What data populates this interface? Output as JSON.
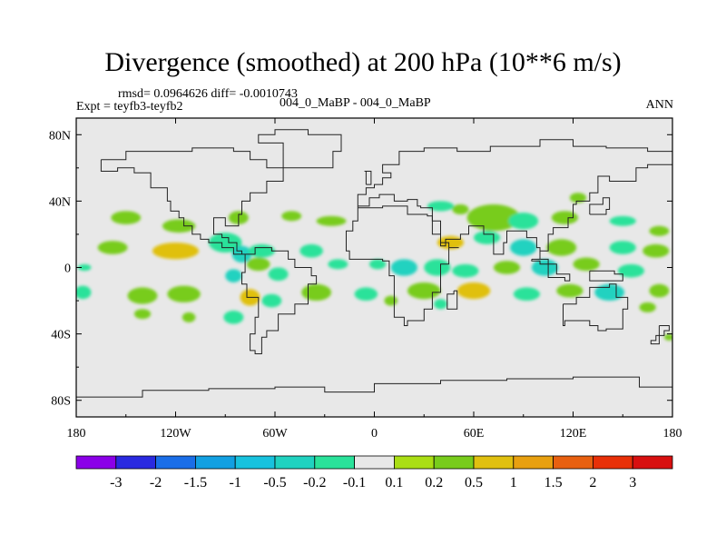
{
  "chart_data": {
    "type": "heatmap",
    "title": "Divergence (smoothed) at 200 hPa (10**6 m/s)",
    "stats_label": "rmsd= 0.0964626 diff= -0.0010743",
    "expt_label": "Expt = teyfb3-teyfb2",
    "case_label": "004_0_MaBP - 004_0_MaBP",
    "period_label": "ANN",
    "x_axis": {
      "range": [
        -180,
        180
      ],
      "ticks": [
        {
          "value": -180,
          "label": "180"
        },
        {
          "value": -120,
          "label": "120W"
        },
        {
          "value": -60,
          "label": "60W"
        },
        {
          "value": 0,
          "label": "0"
        },
        {
          "value": 60,
          "label": "60E"
        },
        {
          "value": 120,
          "label": "120E"
        },
        {
          "value": 180,
          "label": "180"
        }
      ]
    },
    "y_axis": {
      "range": [
        -90,
        90
      ],
      "ticks": [
        {
          "value": 80,
          "label": "80N"
        },
        {
          "value": 40,
          "label": "40N"
        },
        {
          "value": 0,
          "label": "0"
        },
        {
          "value": -40,
          "label": "40S"
        },
        {
          "value": -80,
          "label": "80S"
        }
      ]
    },
    "colorbar": {
      "labels": [
        "-3",
        "-2",
        "-1.5",
        "-1",
        "-0.5",
        "-0.2",
        "-0.1",
        "0.1",
        "0.2",
        "0.5",
        "1",
        "1.5",
        "2",
        "3"
      ],
      "colors": [
        "#8b00e8",
        "#2a2ae0",
        "#1a6ee8",
        "#12a0e2",
        "#18c2de",
        "#20d2c0",
        "#2ae29a",
        "#e8e8e8",
        "#aade14",
        "#78cc1c",
        "#e0c010",
        "#e8a010",
        "#e86010",
        "#e83008",
        "#d81010"
      ]
    },
    "fields": [
      {
        "lon": -150,
        "lat": 30,
        "rx": 9,
        "ry": 4,
        "value": 0.2
      },
      {
        "lon": -118,
        "lat": 25,
        "rx": 10,
        "ry": 4,
        "value": 0.2
      },
      {
        "lon": -82,
        "lat": 30,
        "rx": 6,
        "ry": 4,
        "value": 0.2
      },
      {
        "lon": -50,
        "lat": 31,
        "rx": 6,
        "ry": 3,
        "value": 0.2
      },
      {
        "lon": -26,
        "lat": 28,
        "rx": 9,
        "ry": 3,
        "value": 0.2
      },
      {
        "lon": -158,
        "lat": 12,
        "rx": 9,
        "ry": 4,
        "value": 0.2
      },
      {
        "lon": -120,
        "lat": 10,
        "rx": 14,
        "ry": 5,
        "value": 0.5
      },
      {
        "lon": -90,
        "lat": 15,
        "rx": 10,
        "ry": 6,
        "value": -0.2
      },
      {
        "lon": -80,
        "lat": 8,
        "rx": 6,
        "ry": 5,
        "value": -0.5
      },
      {
        "lon": -68,
        "lat": 10,
        "rx": 8,
        "ry": 4,
        "value": -0.2
      },
      {
        "lon": -38,
        "lat": 10,
        "rx": 7,
        "ry": 4,
        "value": -0.2
      },
      {
        "lon": -175,
        "lat": 0,
        "rx": 4,
        "ry": 2,
        "value": -0.2
      },
      {
        "lon": -85,
        "lat": -5,
        "rx": 5,
        "ry": 4,
        "value": -0.5
      },
      {
        "lon": -70,
        "lat": 2,
        "rx": 7,
        "ry": 4,
        "value": 0.2
      },
      {
        "lon": -58,
        "lat": -4,
        "rx": 6,
        "ry": 4,
        "value": -0.2
      },
      {
        "lon": -22,
        "lat": 2,
        "rx": 6,
        "ry": 3,
        "value": -0.2
      },
      {
        "lon": 2,
        "lat": 2,
        "rx": 5,
        "ry": 3,
        "value": -0.2
      },
      {
        "lon": 18,
        "lat": 0,
        "rx": 8,
        "ry": 5,
        "value": -0.5
      },
      {
        "lon": 38,
        "lat": 0,
        "rx": 8,
        "ry": 5,
        "value": -0.2
      },
      {
        "lon": -176,
        "lat": -15,
        "rx": 5,
        "ry": 4,
        "value": -0.2
      },
      {
        "lon": -140,
        "lat": -17,
        "rx": 9,
        "ry": 5,
        "value": 0.2
      },
      {
        "lon": -115,
        "lat": -16,
        "rx": 10,
        "ry": 5,
        "value": 0.2
      },
      {
        "lon": -75,
        "lat": -18,
        "rx": 6,
        "ry": 5,
        "value": 0.5
      },
      {
        "lon": -62,
        "lat": -20,
        "rx": 6,
        "ry": 4,
        "value": -0.2
      },
      {
        "lon": -35,
        "lat": -15,
        "rx": 9,
        "ry": 5,
        "value": 0.2
      },
      {
        "lon": -5,
        "lat": -16,
        "rx": 7,
        "ry": 4,
        "value": -0.2
      },
      {
        "lon": -140,
        "lat": -28,
        "rx": 5,
        "ry": 3,
        "value": 0.2
      },
      {
        "lon": -85,
        "lat": -30,
        "rx": 6,
        "ry": 4,
        "value": -0.2
      },
      {
        "lon": -112,
        "lat": -30,
        "rx": 4,
        "ry": 3,
        "value": 0.2
      },
      {
        "lon": 10,
        "lat": -20,
        "rx": 4,
        "ry": 3,
        "value": 0.2
      },
      {
        "lon": 40,
        "lat": 37,
        "rx": 8,
        "ry": 3,
        "value": -0.2
      },
      {
        "lon": 52,
        "lat": 35,
        "rx": 5,
        "ry": 3,
        "value": 0.2
      },
      {
        "lon": 72,
        "lat": 30,
        "rx": 16,
        "ry": 8,
        "value": 0.2
      },
      {
        "lon": 90,
        "lat": 28,
        "rx": 9,
        "ry": 5,
        "value": -0.2
      },
      {
        "lon": 115,
        "lat": 30,
        "rx": 8,
        "ry": 4,
        "value": 0.2
      },
      {
        "lon": 123,
        "lat": 42,
        "rx": 5,
        "ry": 3,
        "value": 0.2
      },
      {
        "lon": 150,
        "lat": 28,
        "rx": 8,
        "ry": 3,
        "value": -0.2
      },
      {
        "lon": 172,
        "lat": 22,
        "rx": 6,
        "ry": 3,
        "value": 0.2
      },
      {
        "lon": 46,
        "lat": 15,
        "rx": 8,
        "ry": 4,
        "value": 0.5
      },
      {
        "lon": 68,
        "lat": 18,
        "rx": 8,
        "ry": 4,
        "value": -0.2
      },
      {
        "lon": 90,
        "lat": 12,
        "rx": 8,
        "ry": 5,
        "value": -0.5
      },
      {
        "lon": 113,
        "lat": 12,
        "rx": 9,
        "ry": 5,
        "value": 0.2
      },
      {
        "lon": 150,
        "lat": 12,
        "rx": 8,
        "ry": 4,
        "value": -0.2
      },
      {
        "lon": 170,
        "lat": 10,
        "rx": 8,
        "ry": 4,
        "value": 0.2
      },
      {
        "lon": 55,
        "lat": -2,
        "rx": 8,
        "ry": 4,
        "value": -0.2
      },
      {
        "lon": 80,
        "lat": 0,
        "rx": 8,
        "ry": 4,
        "value": 0.2
      },
      {
        "lon": 103,
        "lat": 0,
        "rx": 8,
        "ry": 5,
        "value": -0.5
      },
      {
        "lon": 128,
        "lat": 2,
        "rx": 8,
        "ry": 4,
        "value": 0.2
      },
      {
        "lon": 155,
        "lat": -2,
        "rx": 8,
        "ry": 4,
        "value": -0.2
      },
      {
        "lon": 30,
        "lat": -14,
        "rx": 10,
        "ry": 5,
        "value": 0.2
      },
      {
        "lon": 60,
        "lat": -14,
        "rx": 10,
        "ry": 5,
        "value": 0.5
      },
      {
        "lon": 92,
        "lat": -16,
        "rx": 8,
        "ry": 4,
        "value": -0.2
      },
      {
        "lon": 118,
        "lat": -14,
        "rx": 8,
        "ry": 4,
        "value": 0.2
      },
      {
        "lon": 142,
        "lat": -15,
        "rx": 9,
        "ry": 5,
        "value": -0.5
      },
      {
        "lon": 172,
        "lat": -14,
        "rx": 6,
        "ry": 4,
        "value": 0.2
      },
      {
        "lon": 40,
        "lat": -22,
        "rx": 4,
        "ry": 3,
        "value": -0.2
      },
      {
        "lon": 165,
        "lat": -24,
        "rx": 5,
        "ry": 3,
        "value": 0.2
      },
      {
        "lon": 178,
        "lat": -42,
        "rx": 3,
        "ry": 2,
        "value": 0.2
      }
    ],
    "land_outlines": [
      [
        [
          -165,
          65
        ],
        [
          -150,
          70
        ],
        [
          -130,
          70
        ],
        [
          -110,
          72
        ],
        [
          -95,
          72
        ],
        [
          -85,
          70
        ],
        [
          -75,
          65
        ],
        [
          -65,
          60
        ],
        [
          -55,
          52
        ],
        [
          -65,
          45
        ],
        [
          -75,
          40
        ],
        [
          -80,
          32
        ],
        [
          -82,
          25
        ],
        [
          -90,
          30
        ],
        [
          -97,
          27
        ],
        [
          -97,
          20
        ],
        [
          -92,
          18
        ],
        [
          -88,
          15
        ],
        [
          -83,
          10
        ],
        [
          -80,
          8
        ],
        [
          -78,
          8
        ],
        [
          -85,
          12
        ],
        [
          -92,
          15
        ],
        [
          -100,
          17
        ],
        [
          -105,
          20
        ],
        [
          -110,
          25
        ],
        [
          -115,
          30
        ],
        [
          -118,
          34
        ],
        [
          -123,
          40
        ],
        [
          -125,
          48
        ],
        [
          -135,
          57
        ],
        [
          -145,
          60
        ],
        [
          -155,
          58
        ],
        [
          -165,
          60
        ],
        [
          -165,
          65
        ]
      ],
      [
        [
          -78,
          8
        ],
        [
          -72,
          12
        ],
        [
          -62,
          10
        ],
        [
          -52,
          5
        ],
        [
          -48,
          0
        ],
        [
          -38,
          -5
        ],
        [
          -35,
          -10
        ],
        [
          -40,
          -22
        ],
        [
          -48,
          -28
        ],
        [
          -58,
          -38
        ],
        [
          -65,
          -42
        ],
        [
          -68,
          -52
        ],
        [
          -72,
          -50
        ],
        [
          -75,
          -40
        ],
        [
          -72,
          -30
        ],
        [
          -70,
          -18
        ],
        [
          -77,
          -10
        ],
        [
          -80,
          -3
        ],
        [
          -78,
          2
        ],
        [
          -78,
          8
        ]
      ],
      [
        [
          -55,
          60
        ],
        [
          -45,
          60
        ],
        [
          -25,
          70
        ],
        [
          -20,
          80
        ],
        [
          -40,
          83
        ],
        [
          -60,
          80
        ],
        [
          -70,
          75
        ],
        [
          -55,
          60
        ]
      ],
      [
        [
          -10,
          36
        ],
        [
          -5,
          36
        ],
        [
          5,
          37
        ],
        [
          10,
          37
        ],
        [
          20,
          32
        ],
        [
          32,
          31
        ],
        [
          35,
          28
        ],
        [
          40,
          15
        ],
        [
          45,
          12
        ],
        [
          51,
          12
        ],
        [
          45,
          2
        ],
        [
          40,
          -5
        ],
        [
          40,
          -15
        ],
        [
          35,
          -25
        ],
        [
          30,
          -32
        ],
        [
          20,
          -35
        ],
        [
          18,
          -30
        ],
        [
          12,
          -18
        ],
        [
          12,
          -5
        ],
        [
          9,
          4
        ],
        [
          5,
          5
        ],
        [
          -5,
          5
        ],
        [
          -15,
          10
        ],
        [
          -17,
          15
        ],
        [
          -17,
          22
        ],
        [
          -13,
          28
        ],
        [
          -10,
          36
        ]
      ],
      [
        [
          -10,
          36
        ],
        [
          -10,
          44
        ],
        [
          -5,
          48
        ],
        [
          0,
          50
        ],
        [
          5,
          54
        ],
        [
          10,
          57
        ],
        [
          5,
          62
        ],
        [
          15,
          70
        ],
        [
          30,
          72
        ],
        [
          50,
          70
        ],
        [
          70,
          73
        ],
        [
          100,
          77
        ],
        [
          120,
          73
        ],
        [
          140,
          72
        ],
        [
          165,
          70
        ],
        [
          180,
          67
        ],
        [
          180,
          62
        ],
        [
          165,
          60
        ],
        [
          158,
          52
        ],
        [
          142,
          55
        ],
        [
          135,
          45
        ],
        [
          130,
          40
        ],
        [
          122,
          38
        ],
        [
          120,
          30
        ],
        [
          117,
          24
        ],
        [
          108,
          20
        ],
        [
          105,
          10
        ],
        [
          100,
          5
        ],
        [
          100,
          12
        ],
        [
          98,
          18
        ],
        [
          92,
          22
        ],
        [
          88,
          22
        ],
        [
          80,
          15
        ],
        [
          78,
          8
        ],
        [
          72,
          20
        ],
        [
          66,
          25
        ],
        [
          57,
          25
        ],
        [
          57,
          20
        ],
        [
          52,
          17
        ],
        [
          43,
          13
        ],
        [
          40,
          20
        ],
        [
          35,
          28
        ],
        [
          35,
          36
        ],
        [
          28,
          37
        ],
        [
          26,
          41
        ],
        [
          20,
          40
        ],
        [
          15,
          40
        ],
        [
          12,
          44
        ],
        [
          8,
          44
        ],
        [
          3,
          42
        ],
        [
          -3,
          37
        ],
        [
          -10,
          36
        ]
      ],
      [
        [
          114,
          -22
        ],
        [
          122,
          -18
        ],
        [
          130,
          -12
        ],
        [
          137,
          -12
        ],
        [
          142,
          -10
        ],
        [
          146,
          -18
        ],
        [
          153,
          -25
        ],
        [
          150,
          -37
        ],
        [
          140,
          -38
        ],
        [
          135,
          -35
        ],
        [
          130,
          -32
        ],
        [
          115,
          -35
        ],
        [
          114,
          -22
        ]
      ],
      [
        [
          95,
          5
        ],
        [
          105,
          -6
        ],
        [
          115,
          -8
        ],
        [
          118,
          -4
        ],
        [
          110,
          2
        ],
        [
          100,
          4
        ],
        [
          95,
          5
        ]
      ],
      [
        [
          130,
          -2
        ],
        [
          145,
          -4
        ],
        [
          150,
          -8
        ],
        [
          140,
          -8
        ],
        [
          130,
          -2
        ]
      ],
      [
        [
          -5,
          50
        ],
        [
          -2,
          58
        ],
        [
          -6,
          58
        ],
        [
          -5,
          50
        ]
      ],
      [
        [
          48,
          -14
        ],
        [
          50,
          -25
        ],
        [
          44,
          -25
        ],
        [
          44,
          -16
        ],
        [
          48,
          -14
        ]
      ],
      [
        [
          130,
          32
        ],
        [
          140,
          35
        ],
        [
          142,
          42
        ],
        [
          138,
          38
        ],
        [
          130,
          32
        ]
      ],
      [
        [
          -180,
          -78
        ],
        [
          -140,
          -74
        ],
        [
          -100,
          -73
        ],
        [
          -60,
          -72
        ],
        [
          -30,
          -75
        ],
        [
          0,
          -70
        ],
        [
          40,
          -68
        ],
        [
          80,
          -67
        ],
        [
          120,
          -66
        ],
        [
          160,
          -72
        ],
        [
          180,
          -78
        ]
      ],
      [
        [
          172,
          -35
        ],
        [
          178,
          -38
        ],
        [
          175,
          -41
        ],
        [
          170,
          -44
        ],
        [
          167,
          -46
        ],
        [
          172,
          -35
        ]
      ]
    ]
  }
}
